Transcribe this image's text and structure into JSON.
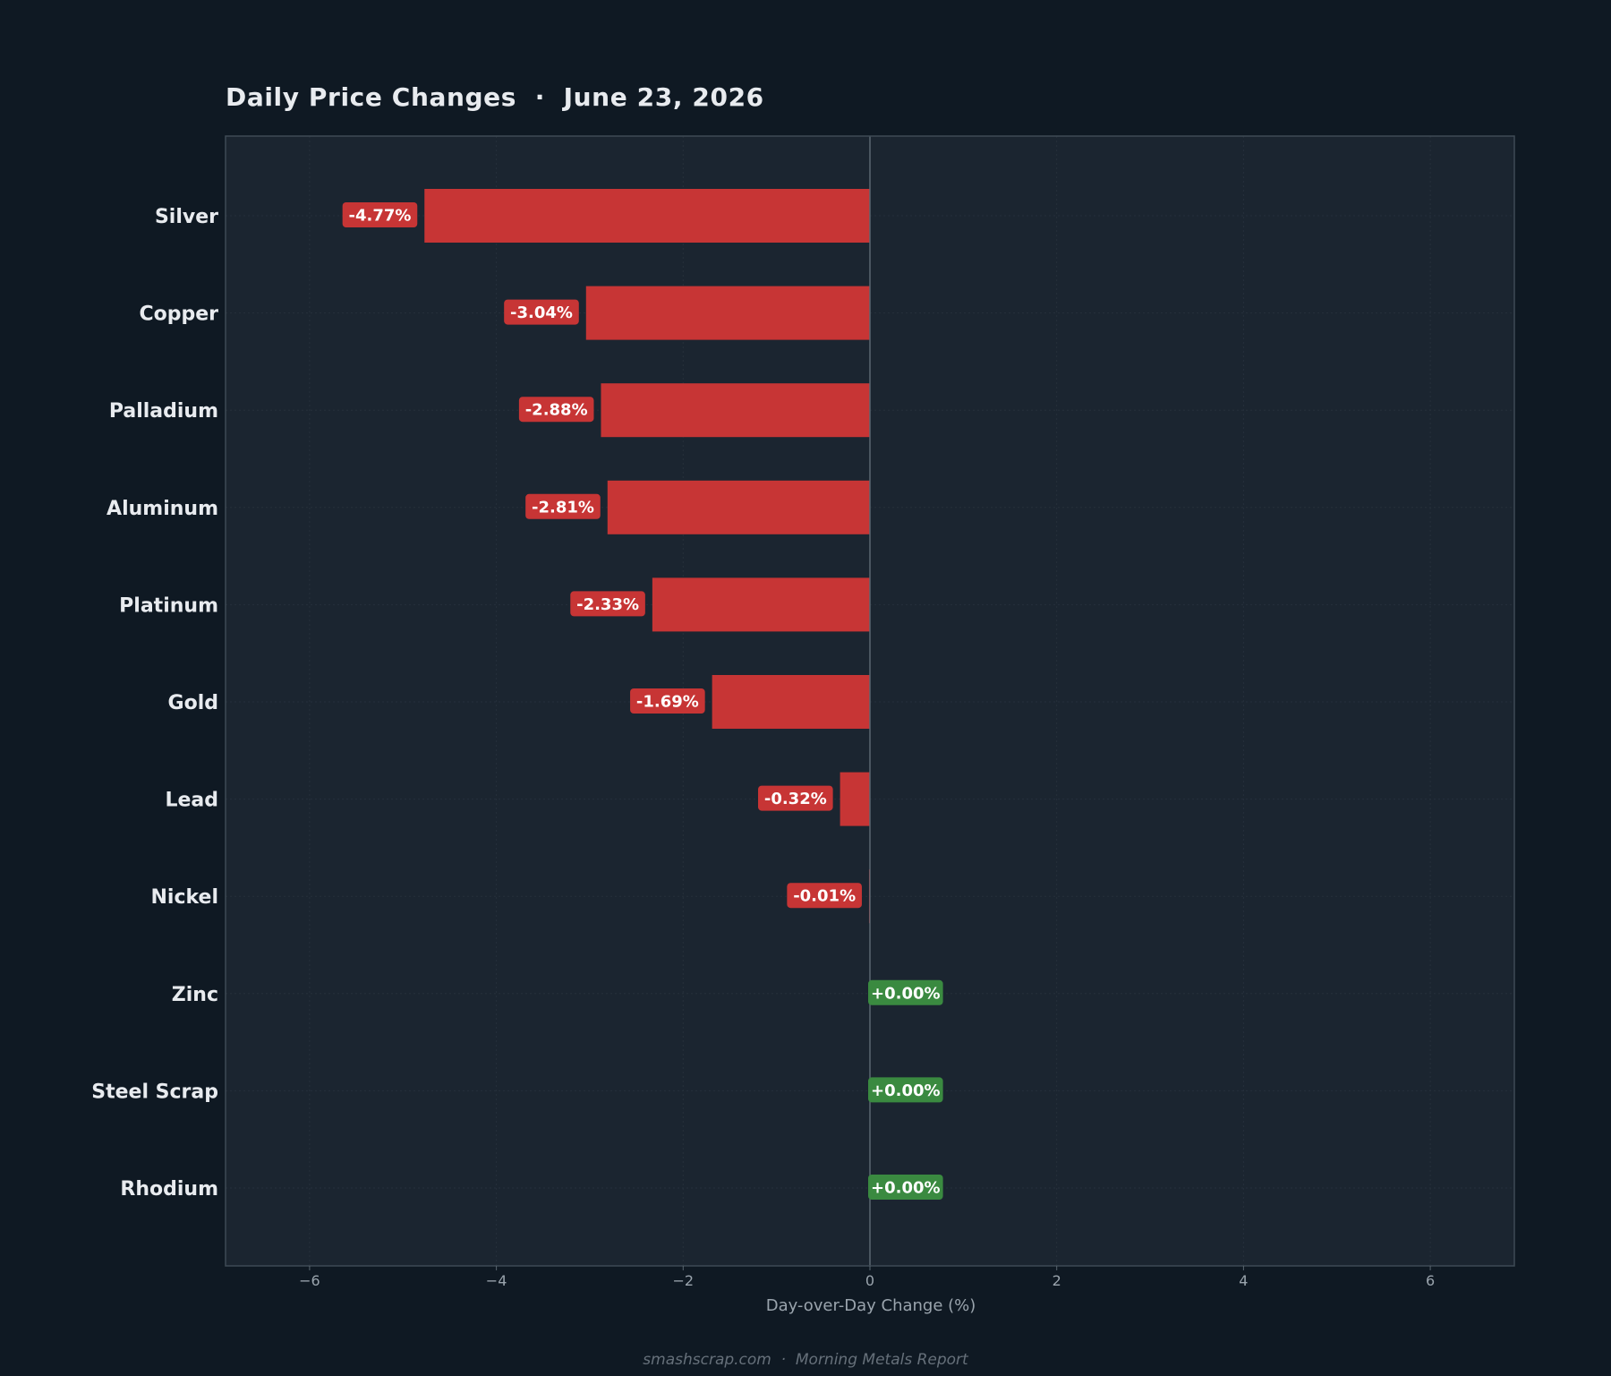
{
  "chart_data": {
    "type": "bar",
    "orientation": "horizontal",
    "title": "Daily Price Changes  ·  June 23, 2026",
    "xlabel": "Day-over-Day Change (%)",
    "ylabel": "",
    "xlim": [
      -6.9,
      6.9
    ],
    "xticks": [
      -6,
      -4,
      -2,
      0,
      2,
      4,
      6
    ],
    "xtick_labels": [
      "−6",
      "−4",
      "−2",
      "0",
      "2",
      "4",
      "6"
    ],
    "categories": [
      "Silver",
      "Copper",
      "Palladium",
      "Aluminum",
      "Platinum",
      "Gold",
      "Lead",
      "Nickel",
      "Zinc",
      "Steel Scrap",
      "Rhodium"
    ],
    "values": [
      -4.77,
      -3.04,
      -2.88,
      -2.81,
      -2.33,
      -1.69,
      -0.32,
      -0.01,
      0.0,
      0.0,
      0.0
    ],
    "data_labels": [
      "-4.77%",
      "-3.04%",
      "-2.88%",
      "-2.81%",
      "-2.33%",
      "-1.69%",
      "-0.32%",
      "-0.01%",
      "+0.00%",
      "+0.00%",
      "+0.00%"
    ],
    "grid": true,
    "colors": {
      "negative": "#c73535",
      "positive": "#3a8a40",
      "plot_background": "#1b2530",
      "page_background": "#0f1923",
      "zero_line": "#5a6670",
      "grid": "#26303b"
    }
  },
  "footer": "smashscrap.com  ·  Morning Metals Report"
}
